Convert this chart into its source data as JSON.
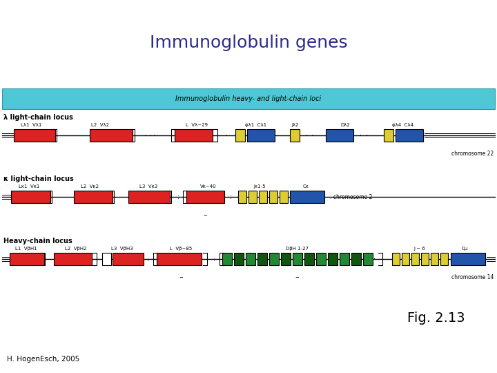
{
  "title": "Immunoglobulin genes",
  "subtitle": "Immunoglobulin heavy- and light-chain loci",
  "fig_label": "Fig. 2.13",
  "author": "H. HogenEsch, 2005",
  "title_color": "#2b2b8a",
  "subtitle_bg": "#4ec8d4",
  "subtitle_border": "#2a9aaa",
  "bg_color": "#ffffff",
  "colors": {
    "red": "#dd2222",
    "blue": "#2255aa",
    "yellow": "#ddcc33",
    "green": "#228833",
    "dark_green": "#115511",
    "white": "#ffffff",
    "outline": "#000000"
  },
  "title_fontsize": 18,
  "subtitle_fontsize": 7,
  "label_fontsize": 7,
  "annot_fontsize": 5,
  "chr_fontsize": 5.5
}
